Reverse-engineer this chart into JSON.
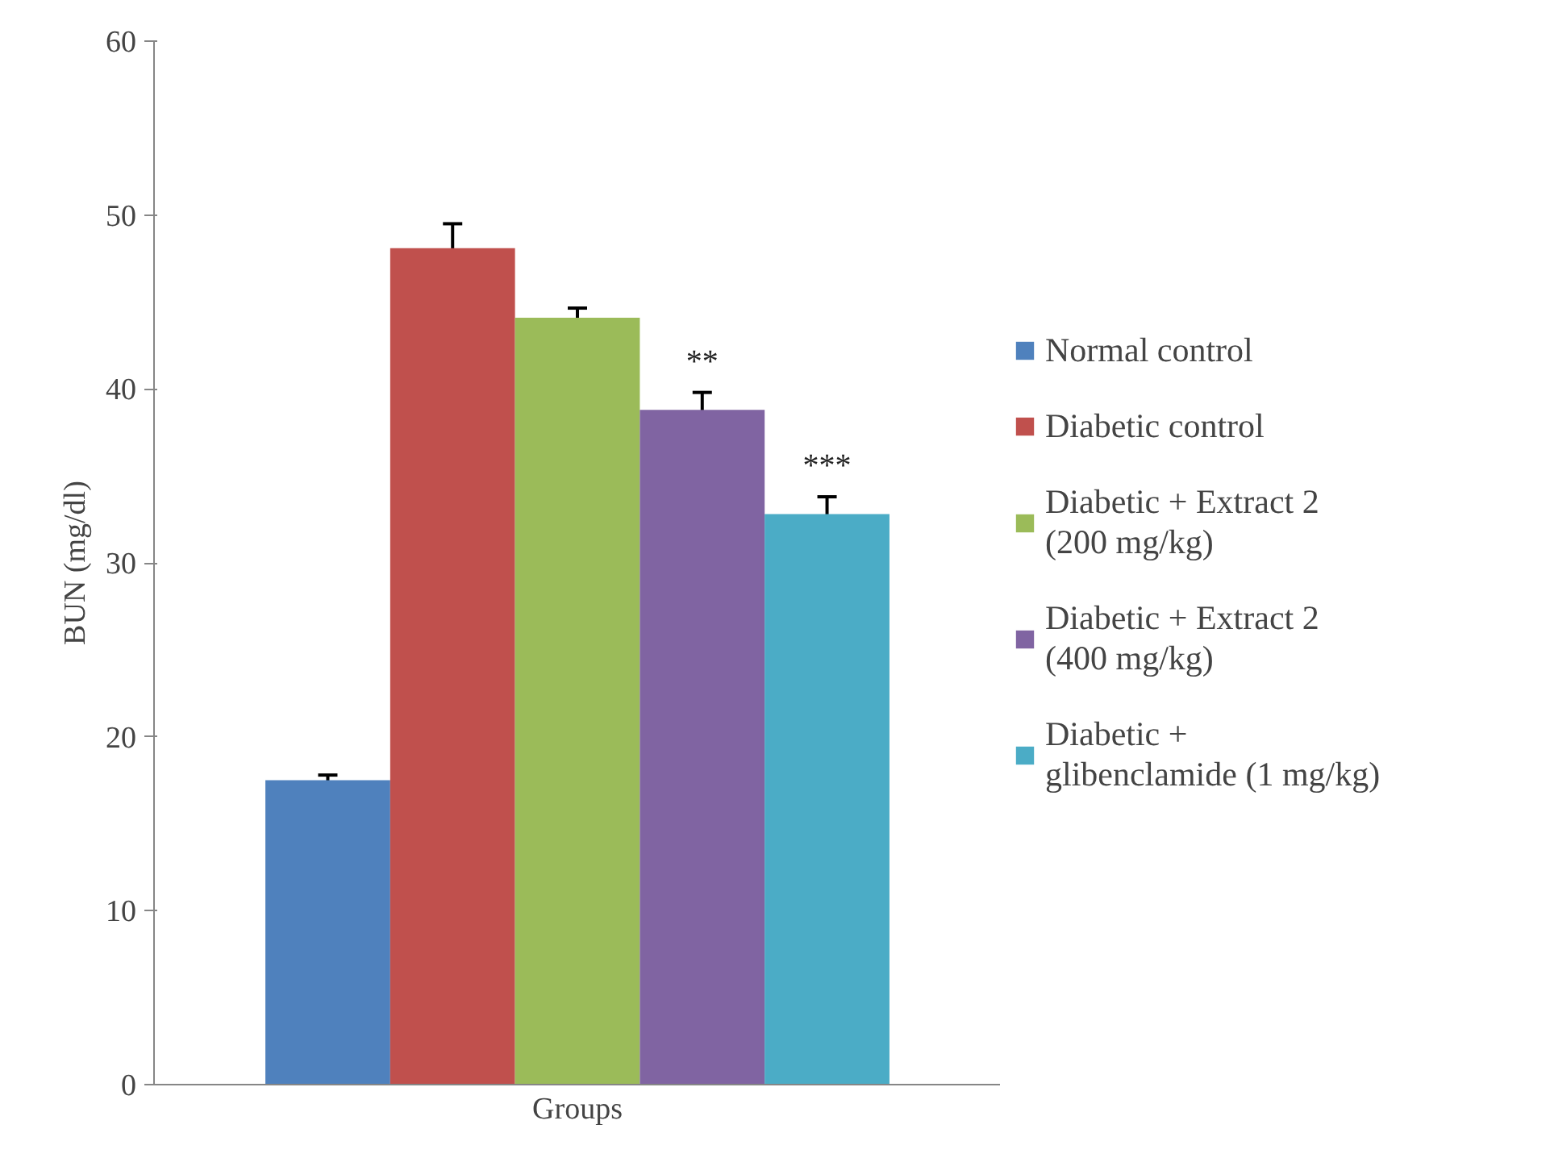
{
  "chart_data": {
    "type": "bar",
    "xlabel": "Groups",
    "ylabel": "BUN (mg/dl)",
    "categories": [
      null
    ],
    "series": [
      {
        "name": "Normal control",
        "color": "#4f81bd",
        "values": [
          17.5
        ],
        "errors": [
          0.3
        ]
      },
      {
        "name": "Diabetic control",
        "color": "#c0504d",
        "values": [
          48.1
        ],
        "errors": [
          1.4
        ]
      },
      {
        "name": "Diabetic + Extract 2 (200 mg/kg)",
        "color": "#9bbb59",
        "values": [
          44.1
        ],
        "errors": [
          0.55
        ]
      },
      {
        "name": "Diabetic + Extract 2 (400 mg/kg)",
        "color": "#8064a2",
        "values": [
          38.8
        ],
        "errors": [
          1.0
        ]
      },
      {
        "name": "Diabetic + glibenclamide (1 mg/kg)",
        "color": "#4bacc6",
        "values": [
          32.8
        ],
        "errors": [
          1.0
        ]
      }
    ],
    "annotations": [
      "**",
      "***"
    ],
    "ylim": [
      0,
      60
    ],
    "yticks": [
      0,
      10,
      20,
      30,
      40,
      50,
      60
    ],
    "grid": false,
    "legend": "right"
  }
}
